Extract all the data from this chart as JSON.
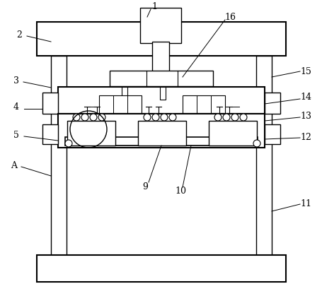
{
  "bg_color": "#ffffff",
  "line_color": "#000000",
  "label_color": "#000000"
}
